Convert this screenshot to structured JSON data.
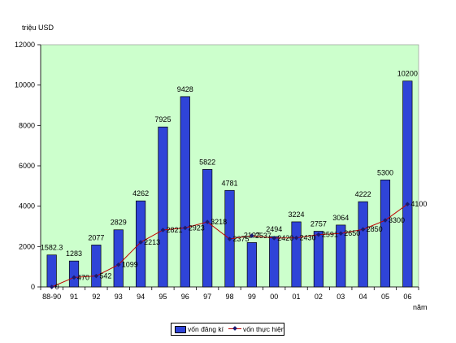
{
  "chart_data": {
    "type": "bar",
    "ylabel": "triệu USD",
    "xlabel": "năm",
    "ylim": [
      0,
      12000
    ],
    "yticks": [
      0,
      2000,
      4000,
      6000,
      8000,
      10000,
      12000
    ],
    "grid": false,
    "background_color": "#ccffcc",
    "legend_position": "bottom",
    "categories": [
      "88-90",
      "91",
      "92",
      "93",
      "94",
      "95",
      "96",
      "97",
      "98",
      "99",
      "00",
      "01",
      "02",
      "03",
      "04",
      "05",
      "06"
    ],
    "series": [
      {
        "name": "vốn đăng kí",
        "kind": "bar",
        "color": "#2f44d8",
        "values": [
          1582.3,
          1283,
          2077,
          2829,
          4262,
          7925,
          9428,
          5822,
          4781,
          2197,
          2494,
          3224,
          2757,
          3064,
          4222,
          5300,
          10200
        ],
        "labels": [
          "1582.3",
          "1283",
          "2077",
          "2829",
          "4262",
          "7925",
          "9428",
          "5822",
          "4781",
          "2197",
          "2494",
          "3224",
          "2757",
          "3064",
          "4222",
          "5300",
          "10200"
        ]
      },
      {
        "name": "vốn thực hiện",
        "kind": "line",
        "color": "#c00000",
        "marker_color": "#1a1a70",
        "values": [
          0,
          470,
          542,
          1099,
          2213,
          2821,
          2923,
          3218,
          2375,
          2537,
          2420,
          2430,
          2591,
          2650,
          2850,
          3300,
          4100
        ],
        "labels": [
          "0",
          "470",
          "542",
          "1099",
          "2213",
          "2821",
          "2923",
          "3218",
          "2375",
          "2537",
          "2420",
          "2430",
          "2591",
          "2650",
          "2850",
          "3300",
          "4100"
        ]
      }
    ]
  }
}
